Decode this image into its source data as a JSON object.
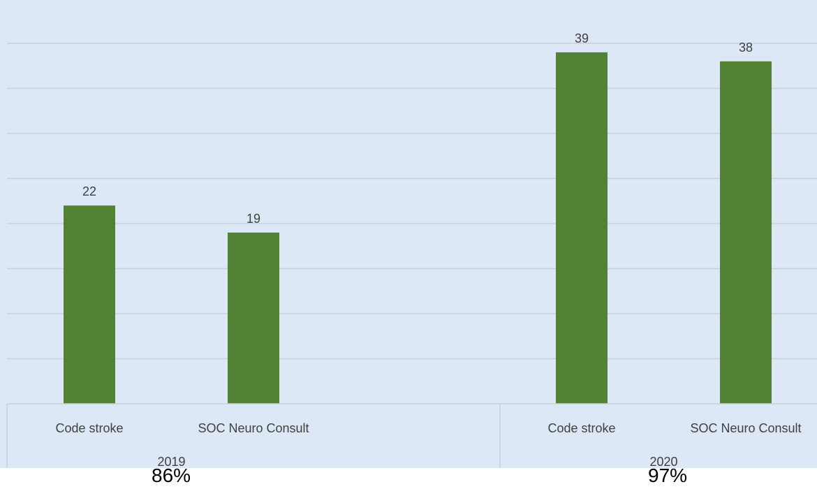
{
  "chart_data": {
    "type": "bar",
    "groups": [
      {
        "label": "2019",
        "categories": [
          "Code stroke",
          "SOC Neuro Consult"
        ],
        "values": [
          22,
          19
        ],
        "summary": "86%"
      },
      {
        "label": "2020",
        "categories": [
          "Code stroke",
          "SOC Neuro Consult"
        ],
        "values": [
          39,
          38
        ],
        "summary": "97%"
      }
    ],
    "ylim": [
      0,
      45
    ],
    "grid": true,
    "bar_color": "#548235",
    "background_color": "#dde8f6",
    "title": "",
    "xlabel": "",
    "ylabel": ""
  }
}
